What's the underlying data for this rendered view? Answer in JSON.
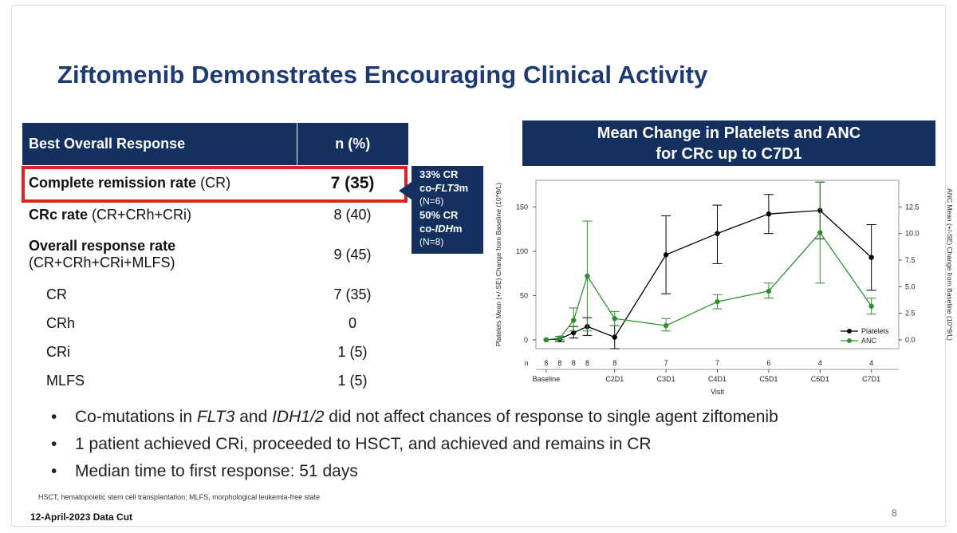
{
  "title": "Ziftomenib Demonstrates Encouraging Clinical Activity",
  "table": {
    "header": {
      "response": "Best Overall Response",
      "n": "n (%)"
    },
    "rows": [
      {
        "bold": "Complete remission rate",
        "rest": " (CR)",
        "n": "7 (35)"
      },
      {
        "bold": "CRc rate",
        "rest": " (CR+CRh+CRi)",
        "n": "8 (40)"
      },
      {
        "bold": "Overall response rate",
        "line2": "(CR+CRh+CRi+MLFS)",
        "n": "9 (45)"
      },
      {
        "label": "CR",
        "n": "7 (35)"
      },
      {
        "label": "CRh",
        "n": "0"
      },
      {
        "label": "CRi",
        "n": "1 (5)"
      },
      {
        "label": "MLFS",
        "n": "1 (5)"
      }
    ]
  },
  "callout": {
    "l1": "33% CR",
    "l2a": "co-",
    "l2b": "FLT3",
    "l2c": "m",
    "l3": "(N=6)",
    "l4": "50% CR",
    "l5a": "co-",
    "l5b": "IDH",
    "l5c": "m",
    "l6": "(N=8)"
  },
  "chart_title": {
    "line1": "Mean Change in Platelets and ANC",
    "line2": "for CRc up to C7D1"
  },
  "chart_data": {
    "type": "line",
    "categories": [
      "Baseline",
      "C2D1",
      "C3D1",
      "C4D1",
      "C5D1",
      "C6D1",
      "C7D1"
    ],
    "xlabel": "Visit",
    "ylabel_left": "Platelets Mean (+/-SE) Change from Baseline (10^9/L)",
    "ylabel_right": "ANC Mean (+/-SE) Change from Baseline (10^9/L)",
    "y_left_range": [
      -10,
      180
    ],
    "y_left_ticks": [
      "0",
      "50",
      "100",
      "150"
    ],
    "y_right_ticks": [
      "0.0",
      "2.5",
      "5.0",
      "7.5",
      "10.0",
      "12.5"
    ],
    "n_label": "n",
    "n_values": [
      {
        "x": 0,
        "label": "8"
      },
      {
        "x": 0.4,
        "label": "8"
      },
      {
        "x": 0.8,
        "label": "8"
      },
      {
        "x": 1.2,
        "label": "8"
      },
      {
        "x": 2,
        "label": "8"
      },
      {
        "x": 3.5,
        "label": "7"
      },
      {
        "x": 5,
        "label": "7"
      },
      {
        "x": 6.5,
        "label": "6"
      },
      {
        "x": 8,
        "label": "4"
      },
      {
        "x": 9.5,
        "label": "4"
      }
    ],
    "series": [
      {
        "name": "Platelets",
        "color": "#000000",
        "points": [
          {
            "x": 0,
            "y": 0,
            "lo": 0,
            "hi": 0
          },
          {
            "x": 0.4,
            "y": 1,
            "lo": -2,
            "hi": 4
          },
          {
            "x": 0.8,
            "y": 8,
            "lo": 2,
            "hi": 15
          },
          {
            "x": 1.2,
            "y": 15,
            "lo": 5,
            "hi": 25
          },
          {
            "x": 2,
            "y": 3,
            "lo": -10,
            "hi": 16
          },
          {
            "x": 3.5,
            "y": 96,
            "lo": 52,
            "hi": 140
          },
          {
            "x": 5,
            "y": 120,
            "lo": 86,
            "hi": 152
          },
          {
            "x": 6.5,
            "y": 142,
            "lo": 120,
            "hi": 164
          },
          {
            "x": 8,
            "y": 146,
            "lo": 114,
            "hi": 178
          },
          {
            "x": 9.5,
            "y": 93,
            "lo": 56,
            "hi": 130
          }
        ]
      },
      {
        "name": "ANC",
        "color": "#2f8f2f",
        "points": [
          {
            "x": 0,
            "y": 0,
            "lo": 0,
            "hi": 0
          },
          {
            "x": 0.4,
            "y": 2,
            "lo": 0,
            "hi": 4
          },
          {
            "x": 0.8,
            "y": 22,
            "lo": 10,
            "hi": 36
          },
          {
            "x": 1.2,
            "y": 72,
            "lo": 10,
            "hi": 134
          },
          {
            "x": 2,
            "y": 24,
            "lo": 16,
            "hi": 32
          },
          {
            "x": 3.5,
            "y": 16,
            "lo": 10,
            "hi": 24
          },
          {
            "x": 5,
            "y": 43,
            "lo": 35,
            "hi": 51
          },
          {
            "x": 6.5,
            "y": 55,
            "lo": 47,
            "hi": 64
          },
          {
            "x": 8,
            "y": 121,
            "lo": 64,
            "hi": 178
          },
          {
            "x": 9.5,
            "y": 38,
            "lo": 29,
            "hi": 47
          }
        ]
      }
    ],
    "legend_position": "bottom-right",
    "grid": false
  },
  "bullets": [
    {
      "parts": [
        {
          "t": "Co-mutations in "
        },
        {
          "t": "FLT3",
          "i": true
        },
        {
          "t": " and "
        },
        {
          "t": "IDH1/2",
          "i": true
        },
        {
          "t": " did not affect chances of response to single agent ziftomenib"
        }
      ]
    },
    {
      "parts": [
        {
          "t": "1 patient achieved CRi, proceeded to HSCT, and achieved and remains in CR"
        }
      ]
    },
    {
      "parts": [
        {
          "t": "Median time to first response: 51 days"
        }
      ]
    }
  ],
  "bullet_char": "•",
  "footnote": "HSCT, hematopoietic stem cell transplantation; MLFS, morphological leukemia-free state",
  "data_cut": "12-April-2023 Data Cut",
  "page_number": "8"
}
